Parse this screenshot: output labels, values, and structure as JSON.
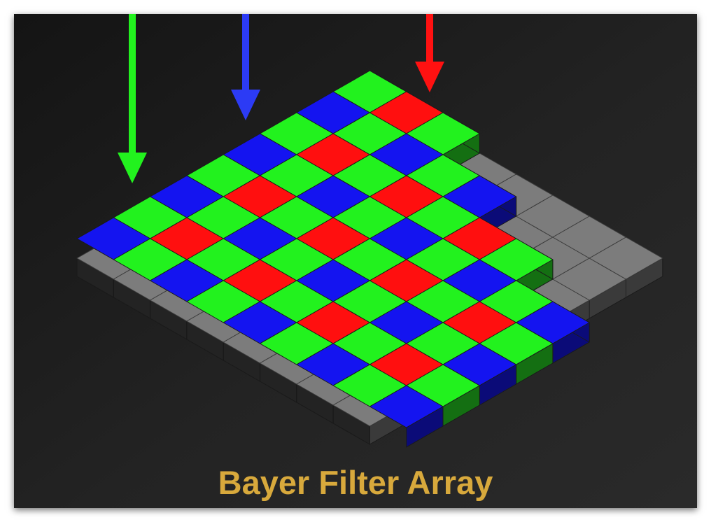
{
  "title": "Bayer Filter Array",
  "colors": {
    "background": "#1c1c1c",
    "title": "#d8a93c",
    "green_top": "#22f21e",
    "green_side": "#146f12",
    "blue_top": "#1414f0",
    "blue_side": "#0b0b78",
    "red_top": "#ff0f0f",
    "red_side": "#780808",
    "sensor_top": "#7c7c7c",
    "sensor_side": "#3a3a3a",
    "sensor_dark_side": "#232323",
    "grid_line": "#1a1a1a"
  },
  "arrows": [
    {
      "name": "green-arrow",
      "color": "#22f21e"
    },
    {
      "name": "blue-arrow",
      "color": "#2c3bf5"
    },
    {
      "name": "red-arrow",
      "color": "#ff1111"
    }
  ],
  "filter_pattern": {
    "even_rows": [
      "blue",
      "green"
    ],
    "odd_rows": [
      "green",
      "red"
    ]
  },
  "row_lengths": [
    8,
    8,
    8,
    7,
    7,
    6,
    6,
    5,
    5
  ]
}
